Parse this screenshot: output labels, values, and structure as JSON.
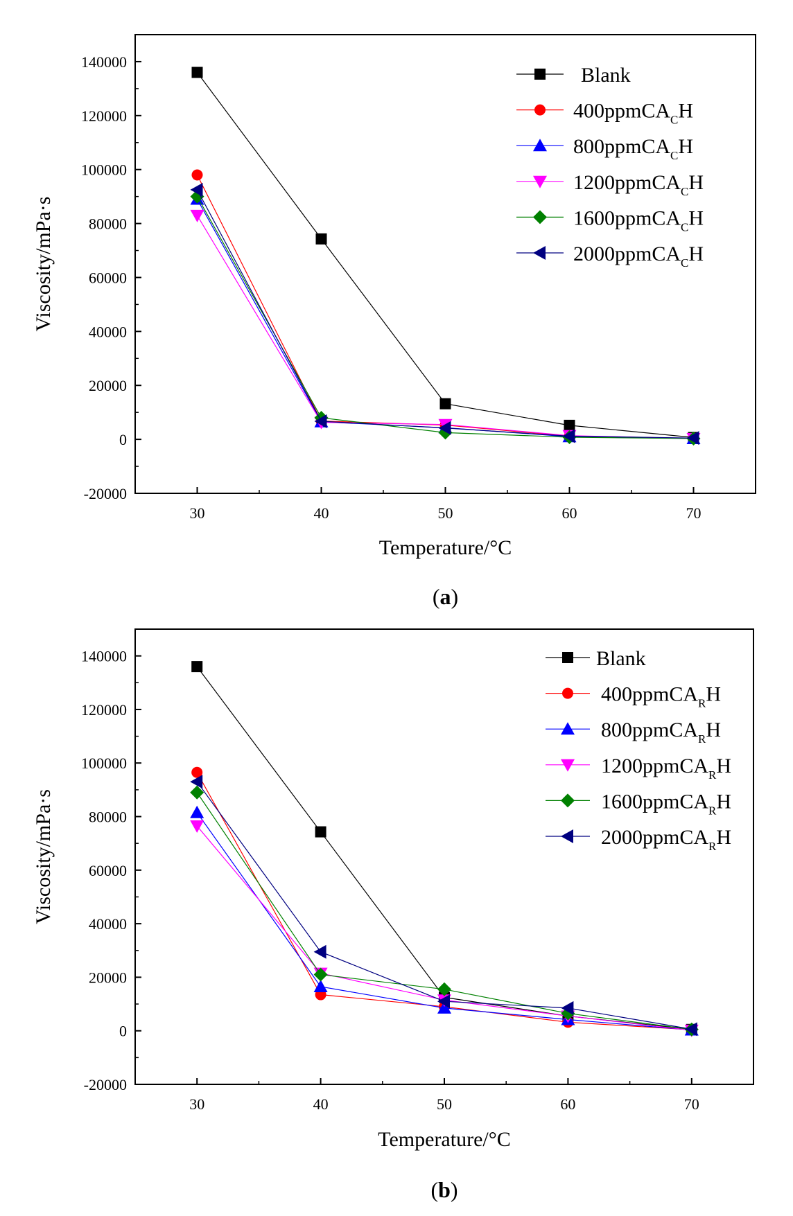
{
  "chart_data": [
    {
      "type": "line",
      "panel_label": "a",
      "xlabel": "Temperature/°C",
      "ylabel": "Viscosity/mPa·s",
      "xlim": [
        25,
        75
      ],
      "ylim": [
        -20000,
        150000
      ],
      "x": [
        30,
        40,
        50,
        60,
        70
      ],
      "xticks": [
        30,
        40,
        50,
        60,
        70
      ],
      "yticks": [
        -20000,
        0,
        20000,
        40000,
        60000,
        80000,
        100000,
        120000,
        140000
      ],
      "legend_position": "top-right",
      "series": [
        {
          "name": "Blank",
          "sub": "",
          "suffix": "",
          "color": "#000000",
          "marker": "square",
          "values": [
            136000,
            74300,
            13200,
            5200,
            700
          ]
        },
        {
          "name": "400ppmCA",
          "sub": "C",
          "suffix": "H",
          "color": "#ff0000",
          "marker": "circle",
          "values": [
            98000,
            6800,
            5300,
            1200,
            400
          ]
        },
        {
          "name": "800ppmCA",
          "sub": "C",
          "suffix": "H",
          "color": "#0000ff",
          "marker": "triangle-up",
          "values": [
            89000,
            6500,
            4300,
            1000,
            300
          ]
        },
        {
          "name": "1200ppmCA",
          "sub": "C",
          "suffix": "H",
          "color": "#ff00ff",
          "marker": "triangle-down",
          "values": [
            83000,
            6300,
            5500,
            1400,
            300
          ]
        },
        {
          "name": "1600ppmCA",
          "sub": "C",
          "suffix": "H",
          "color": "#008000",
          "marker": "diamond",
          "values": [
            90000,
            8000,
            2500,
            800,
            300
          ]
        },
        {
          "name": "2000ppmCA",
          "sub": "C",
          "suffix": "H",
          "color": "#000080",
          "marker": "triangle-left",
          "values": [
            92500,
            6700,
            4200,
            1200,
            500
          ]
        }
      ]
    },
    {
      "type": "line",
      "panel_label": "b",
      "xlabel": "Temperature/°C",
      "ylabel": "Viscosity/mPa·s",
      "xlim": [
        25,
        75
      ],
      "ylim": [
        -20000,
        150000
      ],
      "x": [
        30,
        40,
        50,
        60,
        70
      ],
      "xticks": [
        30,
        40,
        50,
        60,
        70
      ],
      "yticks": [
        -20000,
        0,
        20000,
        40000,
        60000,
        80000,
        100000,
        120000,
        140000
      ],
      "legend_position": "top-right",
      "series": [
        {
          "name": "Blank",
          "sub": "",
          "suffix": "",
          "color": "#000000",
          "marker": "square",
          "values": [
            136000,
            74300,
            12500,
            5500,
            500
          ]
        },
        {
          "name": "400ppmCA",
          "sub": "R",
          "suffix": "H",
          "color": "#ff0000",
          "marker": "circle",
          "values": [
            96500,
            13500,
            9000,
            3200,
            400
          ]
        },
        {
          "name": "800ppmCA",
          "sub": "R",
          "suffix": "H",
          "color": "#0000ff",
          "marker": "triangle-up",
          "values": [
            81500,
            16500,
            8500,
            4200,
            300
          ]
        },
        {
          "name": "1200ppmCA",
          "sub": "R",
          "suffix": "H",
          "color": "#ff00ff",
          "marker": "triangle-down",
          "values": [
            76500,
            21500,
            11500,
            5500,
            200
          ]
        },
        {
          "name": "1600ppmCA",
          "sub": "R",
          "suffix": "H",
          "color": "#008000",
          "marker": "diamond",
          "values": [
            89000,
            21000,
            15500,
            6500,
            500
          ]
        },
        {
          "name": "2000ppmCA",
          "sub": "R",
          "suffix": "H",
          "color": "#000080",
          "marker": "triangle-left",
          "values": [
            93000,
            29500,
            11000,
            8500,
            600
          ]
        }
      ]
    }
  ]
}
